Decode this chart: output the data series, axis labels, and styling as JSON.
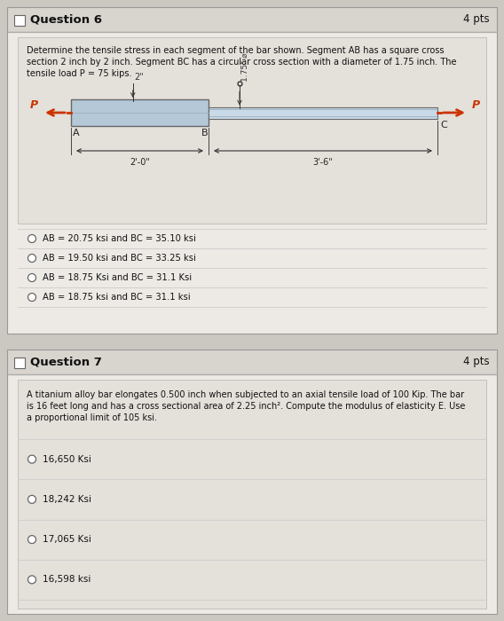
{
  "bg_color": "#cbc7c1",
  "card_bg": "#edeae5",
  "header_bg": "#d8d4ce",
  "inner_bg": "#e4e0da",
  "q6_title": "Question 6",
  "q6_pts": "4 pts",
  "q6_text_line1": "Determine the tensile stress in each segment of the bar shown. Segment AB has a square cross",
  "q6_text_line2": "section 2 inch by 2 inch. Segment BC has a circular cross section with a diameter of 1.75 inch. The",
  "q6_text_line3": "tensile load P = 75 kips.",
  "q6_choices": [
    "AB = 20.75 ksi and BC = 35.10 ksi",
    "AB = 19.50 ksi and BC = 33.25 ksi",
    "AB = 18.75 Ksi and BC = 31.1 Ksi",
    "AB = 18.75 ksi and BC = 31.1 ksi"
  ],
  "q7_title": "Question 7",
  "q7_pts": "4 pts",
  "q7_text_line1": "A titanium alloy bar elongates 0.500 inch when subjected to an axial tensile load of 100 Kip. The bar",
  "q7_text_line2": "is 16 feet long and has a cross sectional area of 2.25 inch². Compute the modulus of elasticity E. Use",
  "q7_text_line3": "a proportional limit of 105 ksi.",
  "q7_choices": [
    "16,650 Ksi",
    "18,242 Ksi",
    "17,065 Ksi",
    "16,598 ksi"
  ],
  "bar_AB_color": "#b4c8d8",
  "bar_BC_color": "#c8dae8",
  "arrow_color": "#cc3300",
  "text_color": "#111111",
  "dim_color": "#333333"
}
